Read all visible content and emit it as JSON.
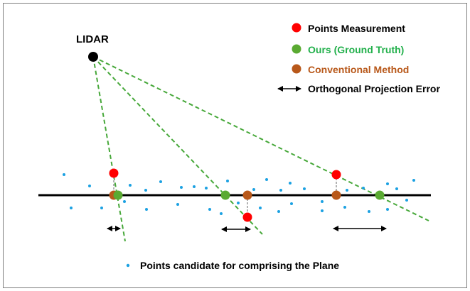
{
  "lidar_label": "LIDAR",
  "legend": {
    "measurement": {
      "label": "Points Measurement",
      "color": "#ff0000",
      "text_color": "#000000"
    },
    "ground_truth": {
      "label": "Ours (Ground Truth)",
      "color": "#5aaa32",
      "text_color": "#22b04b"
    },
    "conventional": {
      "label": "Conventional Method",
      "color": "#b8581a",
      "text_color": "#b8581a"
    },
    "projection_error": {
      "label": "Orthogonal Projection Error",
      "icon": "double-arrow-icon",
      "text_color": "#000000"
    }
  },
  "candidate_caption": {
    "label": "Points candidate for comprising the Plane",
    "color": "#1ba1e2"
  },
  "colors": {
    "lidar": "#000000",
    "ray": "#47a83a",
    "plane_line": "#000000",
    "frame": "#7f7f7f"
  }
}
